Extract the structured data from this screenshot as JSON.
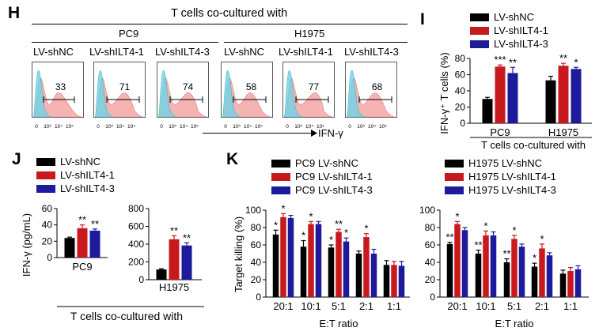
{
  "colors": {
    "nc": "#000000",
    "ilt41": "#c8191e",
    "ilt43": "#1e1a9c",
    "hist_ctrl": "#6fd3e6",
    "hist_sample": "#f29a9a"
  },
  "panelH": {
    "letter": "H",
    "title": "T cells co-cultured with",
    "groups": [
      "PC9",
      "H1975"
    ],
    "labels": [
      "LV-shNC",
      "LV-shILT4-1",
      "LV-shILT4-3",
      "LV-shNC",
      "LV-shILT4-1",
      "LV-shILT4-3"
    ],
    "percentages": [
      "33",
      "71",
      "74",
      "58",
      "77",
      "68"
    ],
    "axis_ticks": [
      "0",
      "10³",
      "10⁴",
      "10⁵"
    ],
    "xlabel": "IFN-γ"
  },
  "legend": {
    "nc": "LV-shNC",
    "ilt41": "LV-shILT4-1",
    "ilt43": "LV-shILT4-3"
  },
  "legendK": {
    "pc9": [
      "PC9 LV-shNC",
      "PC9 LV-shILT4-1",
      "PC9 LV-shILT4-3"
    ],
    "h1975": [
      "H1975 LV-shNC",
      "H1975 LV-shILT4-1",
      "H1975 LV-shILT4-3"
    ]
  },
  "letters": {
    "I": "I",
    "J": "J",
    "K": "K"
  },
  "chart_data": [
    {
      "id": "I",
      "type": "bar",
      "categories": [
        "PC9",
        "H1975"
      ],
      "series": [
        {
          "name": "LV-shNC",
          "values": [
            30,
            53
          ],
          "errors": [
            2,
            5
          ]
        },
        {
          "name": "LV-shILT4-1",
          "values": [
            70,
            71
          ],
          "errors": [
            2,
            3
          ]
        },
        {
          "name": "LV-shILT4-3",
          "values": [
            62,
            67
          ],
          "errors": [
            7,
            2
          ]
        }
      ],
      "significance": [
        [
          "",
          "***",
          "**"
        ],
        [
          "",
          "**",
          "*"
        ]
      ],
      "ylabel": "IFN-γ⁺ T cells (%)",
      "xlabel": "T cells co-cultured with",
      "ylim": [
        0,
        80
      ],
      "yticks": [
        "0",
        "20",
        "40",
        "60",
        "80"
      ]
    },
    {
      "id": "J-PC9",
      "type": "bar",
      "categories": [
        "PC9"
      ],
      "series": [
        {
          "name": "LV-shNC",
          "values": [
            24
          ],
          "errors": [
            1
          ]
        },
        {
          "name": "LV-shILT4-1",
          "values": [
            36
          ],
          "errors": [
            4
          ]
        },
        {
          "name": "LV-shILT4-3",
          "values": [
            33
          ],
          "errors": [
            2
          ]
        }
      ],
      "significance": [
        [
          "",
          "**",
          "**"
        ]
      ],
      "ylabel": "IFN-γ (pg/mL)",
      "ylim": [
        0,
        60
      ],
      "yticks": [
        "0",
        "20",
        "40",
        "60"
      ]
    },
    {
      "id": "J-H1975",
      "type": "bar",
      "categories": [
        "H1975"
      ],
      "series": [
        {
          "name": "LV-shNC",
          "values": [
            115
          ],
          "errors": [
            8
          ]
        },
        {
          "name": "LV-shILT4-1",
          "values": [
            455
          ],
          "errors": [
            40
          ]
        },
        {
          "name": "LV-shILT4-3",
          "values": [
            385
          ],
          "errors": [
            30
          ]
        }
      ],
      "significance": [
        [
          "",
          "**",
          "**"
        ]
      ],
      "xlabel": "T cells co-cultured with",
      "ylim": [
        0,
        800
      ],
      "yticks": [
        "0",
        "200",
        "400",
        "600",
        "800"
      ]
    },
    {
      "id": "K-PC9",
      "type": "bar",
      "categories": [
        "20:1",
        "10:1",
        "5:1",
        "2:1",
        "1:1"
      ],
      "series": [
        {
          "name": "PC9 LV-shNC",
          "values": [
            72,
            58,
            57,
            50,
            37
          ],
          "errors": [
            5,
            7,
            3,
            3,
            5
          ]
        },
        {
          "name": "PC9 LV-shILT4-1",
          "values": [
            92,
            84,
            75,
            69,
            37
          ],
          "errors": [
            4,
            3,
            3,
            4,
            4
          ]
        },
        {
          "name": "PC9 LV-shILT4-3",
          "values": [
            91,
            84,
            64,
            50,
            36
          ],
          "errors": [
            3,
            3,
            4,
            5,
            5
          ]
        }
      ],
      "significance": [
        [
          "*",
          "*",
          "*",
          "",
          ""
        ],
        [
          "*",
          "*",
          "**",
          "*",
          ""
        ],
        [
          "",
          "",
          "*",
          "",
          ""
        ]
      ],
      "ylabel": "Target killing (%)",
      "xlabel": "E:T ratio",
      "ylim": [
        0,
        100
      ],
      "yticks": [
        "0",
        "20",
        "40",
        "60",
        "80",
        "100"
      ]
    },
    {
      "id": "K-H1975",
      "type": "bar",
      "categories": [
        "20:1",
        "10:1",
        "5:1",
        "2:1",
        "1:1"
      ],
      "series": [
        {
          "name": "H1975 LV-shNC",
          "values": [
            61,
            50,
            40,
            35,
            27
          ],
          "errors": [
            2,
            4,
            4,
            4,
            4
          ]
        },
        {
          "name": "H1975 LV-shILT4-1",
          "values": [
            84,
            71,
            67,
            56,
            30
          ],
          "errors": [
            3,
            5,
            4,
            5,
            4
          ]
        },
        {
          "name": "H1975 LV-shILT4-3",
          "values": [
            77,
            71,
            58,
            48,
            32
          ],
          "errors": [
            3,
            4,
            3,
            3,
            4
          ]
        }
      ],
      "significance": [
        [
          "**",
          "**",
          "**",
          "*",
          ""
        ],
        [
          "*",
          "*",
          "*",
          "*",
          ""
        ]
      ],
      "xlabel": "E:T ratio",
      "ylim": [
        0,
        100
      ],
      "yticks": [
        "0",
        "20",
        "40",
        "60",
        "80",
        "100"
      ]
    }
  ]
}
